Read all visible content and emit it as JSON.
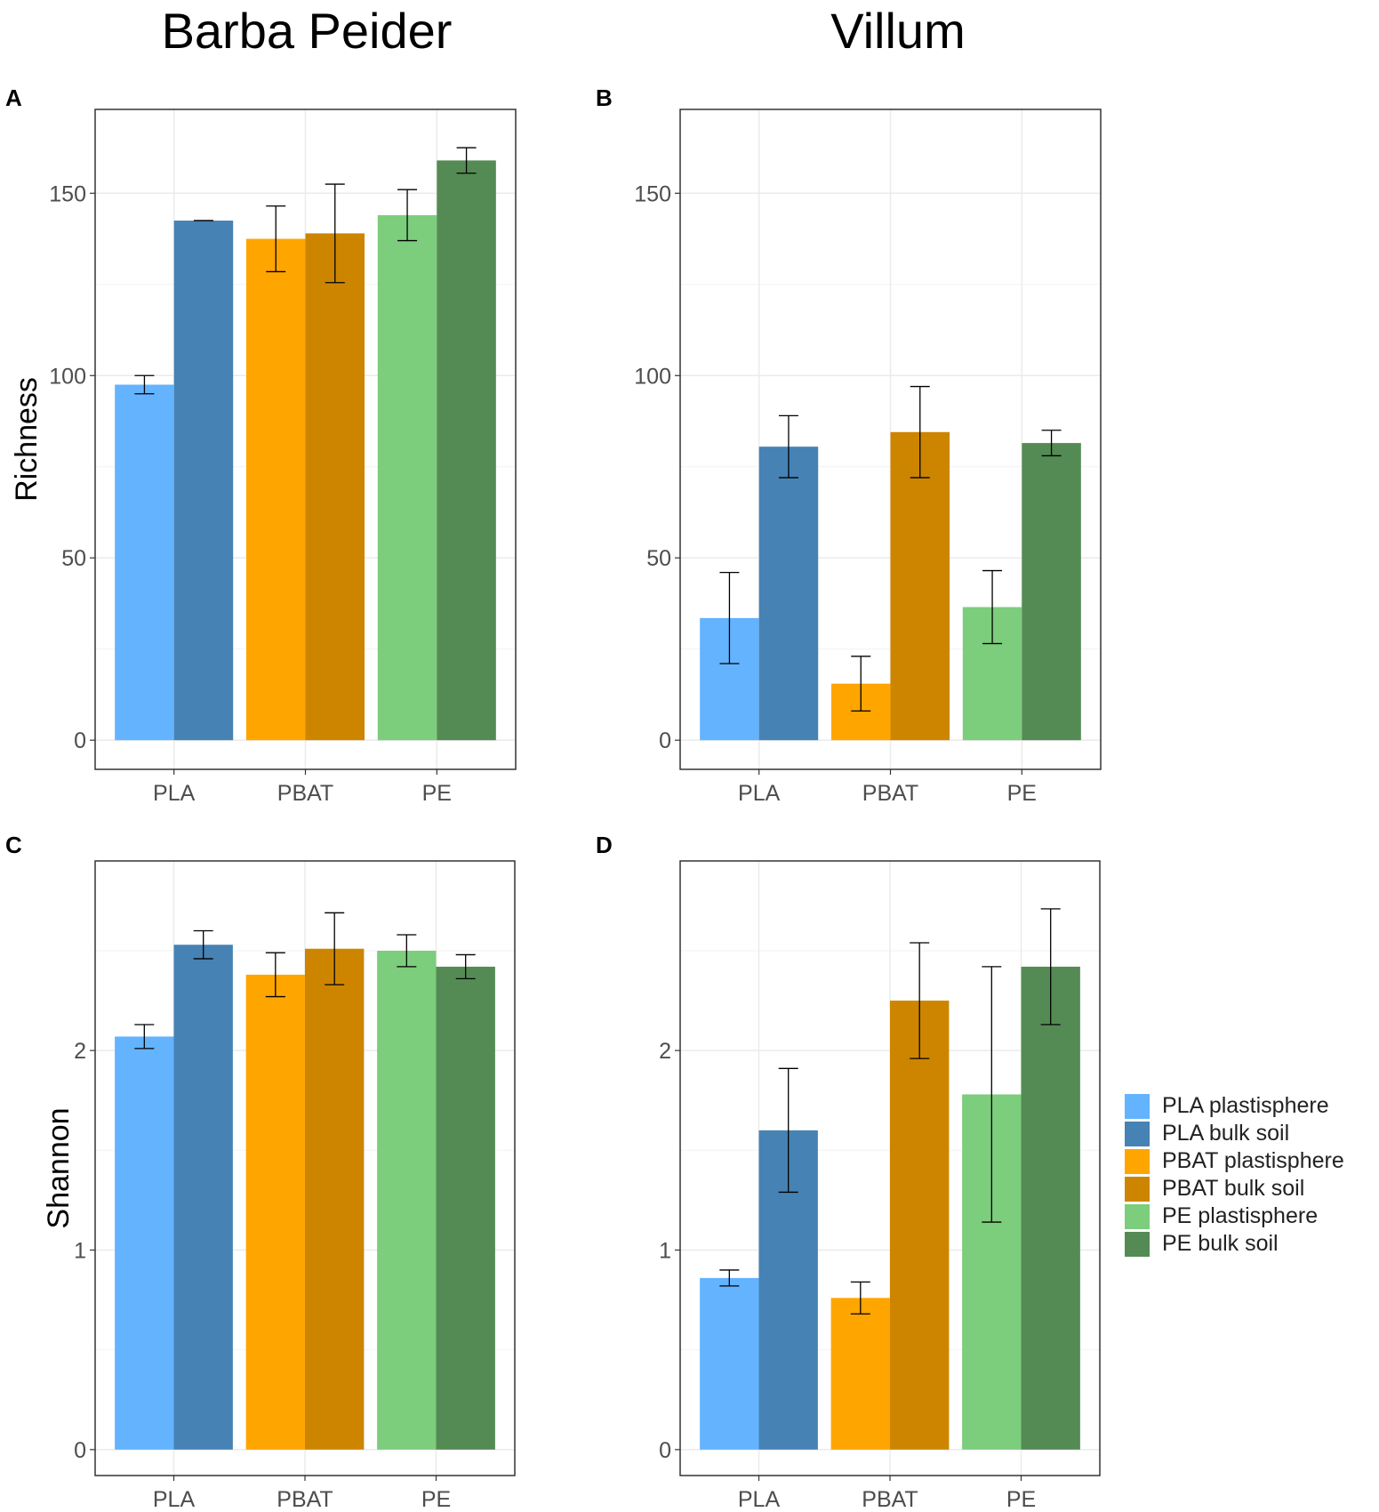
{
  "column_titles": [
    "Barba Peider",
    "Villum"
  ],
  "panel_letters": [
    "A",
    "B",
    "C",
    "D"
  ],
  "legend": [
    {
      "label": "PLA plastisphere",
      "color": "#63b3ff"
    },
    {
      "label": "PLA bulk soil",
      "color": "#4682b4"
    },
    {
      "label": "PBAT plastisphere",
      "color": "#ffa500"
    },
    {
      "label": "PBAT bulk soil",
      "color": "#cd8500"
    },
    {
      "label": "PE plastisphere",
      "color": "#7ccd7c"
    },
    {
      "label": "PE bulk soil",
      "color": "#548b54"
    }
  ],
  "chart_data": [
    {
      "id": "A",
      "type": "bar",
      "site": "Barba Peider",
      "categories": [
        "PLA",
        "PBAT",
        "PE"
      ],
      "series": [
        {
          "name": "plastisphere",
          "values": [
            97.5,
            137.5,
            144
          ],
          "errors": [
            2.5,
            9,
            7
          ]
        },
        {
          "name": "bulk soil",
          "values": [
            142.5,
            139,
            159
          ],
          "errors": [
            0,
            13.5,
            3.5
          ]
        }
      ],
      "ylabel": "Richness",
      "xlabel": "",
      "ylim": [
        -8,
        173
      ],
      "yticks": [
        0,
        50,
        100,
        150
      ]
    },
    {
      "id": "B",
      "type": "bar",
      "site": "Villum",
      "categories": [
        "PLA",
        "PBAT",
        "PE"
      ],
      "series": [
        {
          "name": "plastisphere",
          "values": [
            33.5,
            15.5,
            36.5
          ],
          "errors": [
            12.5,
            7.5,
            10
          ]
        },
        {
          "name": "bulk soil",
          "values": [
            80.5,
            84.5,
            81.5
          ],
          "errors": [
            8.5,
            12.5,
            3.5
          ]
        }
      ],
      "ylabel": "",
      "xlabel": "",
      "ylim": [
        -8,
        173
      ],
      "yticks": [
        0,
        50,
        100,
        150
      ]
    },
    {
      "id": "C",
      "type": "bar",
      "site": "Barba Peider",
      "categories": [
        "PLA",
        "PBAT",
        "PE"
      ],
      "series": [
        {
          "name": "plastisphere",
          "values": [
            2.07,
            2.38,
            2.5
          ],
          "errors": [
            0.06,
            0.11,
            0.08
          ]
        },
        {
          "name": "bulk soil",
          "values": [
            2.53,
            2.51,
            2.42
          ],
          "errors": [
            0.07,
            0.18,
            0.06
          ]
        }
      ],
      "ylabel": "Shannon",
      "xlabel": "",
      "ylim": [
        -0.13,
        2.95
      ],
      "yticks": [
        0,
        1,
        2
      ]
    },
    {
      "id": "D",
      "type": "bar",
      "site": "Villum",
      "categories": [
        "PLA",
        "PBAT",
        "PE"
      ],
      "series": [
        {
          "name": "plastisphere",
          "values": [
            0.86,
            0.76,
            1.78
          ],
          "errors": [
            0.04,
            0.08,
            0.64
          ]
        },
        {
          "name": "bulk soil",
          "values": [
            1.6,
            2.25,
            2.42
          ],
          "errors": [
            0.31,
            0.29,
            0.29
          ]
        }
      ],
      "ylabel": "",
      "xlabel": "",
      "ylim": [
        -0.13,
        2.95
      ],
      "yticks": [
        0,
        1,
        2
      ]
    }
  ]
}
